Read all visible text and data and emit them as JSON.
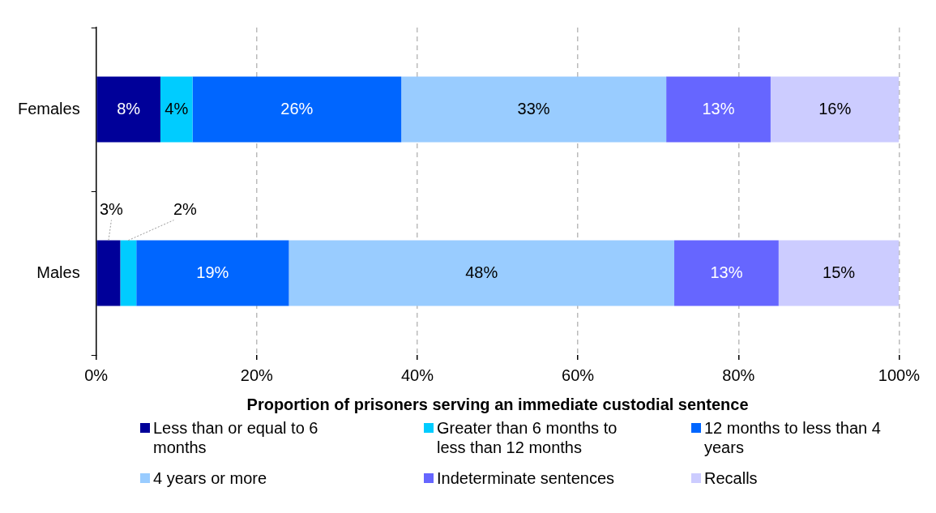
{
  "chart_data": {
    "type": "bar",
    "orientation": "horizontal",
    "stacked": true,
    "categories": [
      "Females",
      "Males"
    ],
    "xlabel": "Proportion of prisoners serving an immediate custodial sentence",
    "xlim": [
      0,
      100
    ],
    "xticks": [
      {
        "value": 0,
        "label": "0%"
      },
      {
        "value": 20,
        "label": "20%"
      },
      {
        "value": 40,
        "label": "40%"
      },
      {
        "value": 60,
        "label": "60%"
      },
      {
        "value": 80,
        "label": "80%"
      },
      {
        "value": 100,
        "label": "100%"
      }
    ],
    "grid": "x",
    "legend": "bottom",
    "series": [
      {
        "name": "Less than or equal to 6 months",
        "color": "#000099",
        "values": [
          8,
          3
        ],
        "value_labels": [
          "8%",
          "3%"
        ]
      },
      {
        "name": "Greater than 6 months to less than 12 months",
        "color": "#00ccff",
        "values": [
          4,
          2
        ],
        "value_labels": [
          "4%",
          "2%"
        ]
      },
      {
        "name": "12 months to less than 4 years",
        "color": "#0066ff",
        "values": [
          26,
          19
        ],
        "value_labels": [
          "26%",
          "19%"
        ]
      },
      {
        "name": "4 years or more",
        "color": "#99ccff",
        "values": [
          33,
          48
        ],
        "value_labels": [
          "33%",
          "48%"
        ]
      },
      {
        "name": "Indeterminate sentences",
        "color": "#6666ff",
        "values": [
          13,
          13
        ],
        "value_labels": [
          "13%",
          "13%"
        ]
      },
      {
        "name": "Recalls",
        "color": "#ccccff",
        "values": [
          16,
          15
        ],
        "value_labels": [
          "16%",
          "15%"
        ]
      }
    ]
  }
}
